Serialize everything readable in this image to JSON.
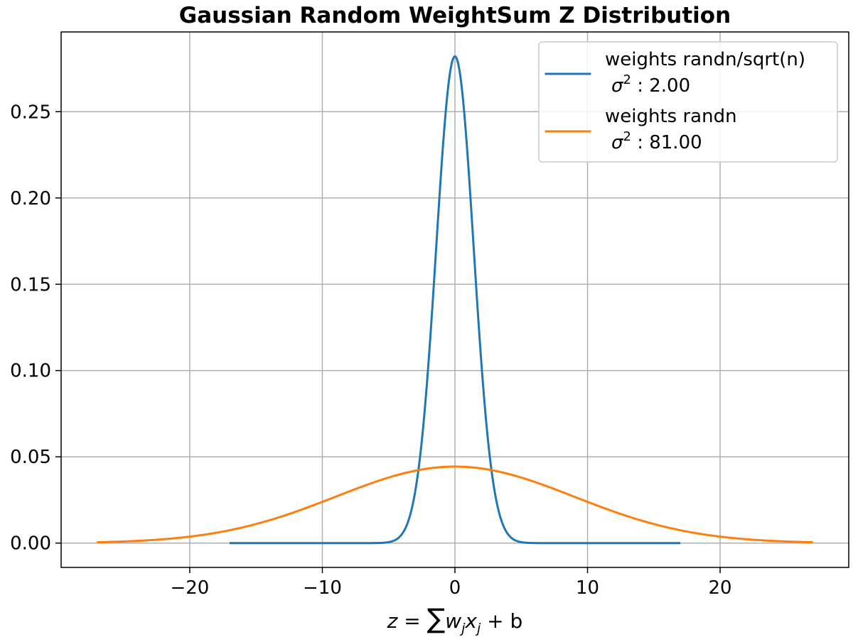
{
  "chart_data": {
    "type": "line",
    "title": "Gaussian Random WeightSum Z Distribution",
    "xlabel": {
      "z": "z",
      "eq": " = ",
      "sum": "∑",
      "w": "w",
      "j1": "j",
      "x": "x",
      "j2": "j",
      "rest": " + b"
    },
    "ylabel": "",
    "xlim": [
      -29.7,
      29.7
    ],
    "ylim": [
      -0.0141,
      0.2962
    ],
    "xticks": [
      -20,
      -10,
      0,
      10,
      20
    ],
    "xtick_labels": [
      "−20",
      "−10",
      "0",
      "10",
      "20"
    ],
    "yticks": [
      0.0,
      0.05,
      0.1,
      0.15,
      0.2,
      0.25
    ],
    "ytick_labels": [
      "0.00",
      "0.05",
      "0.10",
      "0.15",
      "0.20",
      "0.25"
    ],
    "grid": true,
    "legend_position": "top-right",
    "series": [
      {
        "name_line1": "weights randn/sqrt(n)",
        "sigma": "σ",
        "sup": "2",
        "name_value": " :  2.00",
        "color": "#1f77b4",
        "variance": 2.0,
        "mean": 0,
        "x_range": [
          -17,
          17
        ]
      },
      {
        "name_line1": "weights randn",
        "sigma": "σ",
        "sup": "2",
        "name_value": " : 81.00",
        "color": "#ff7f0e",
        "variance": 81.0,
        "mean": 0,
        "x_range": [
          -27,
          27
        ]
      }
    ]
  }
}
